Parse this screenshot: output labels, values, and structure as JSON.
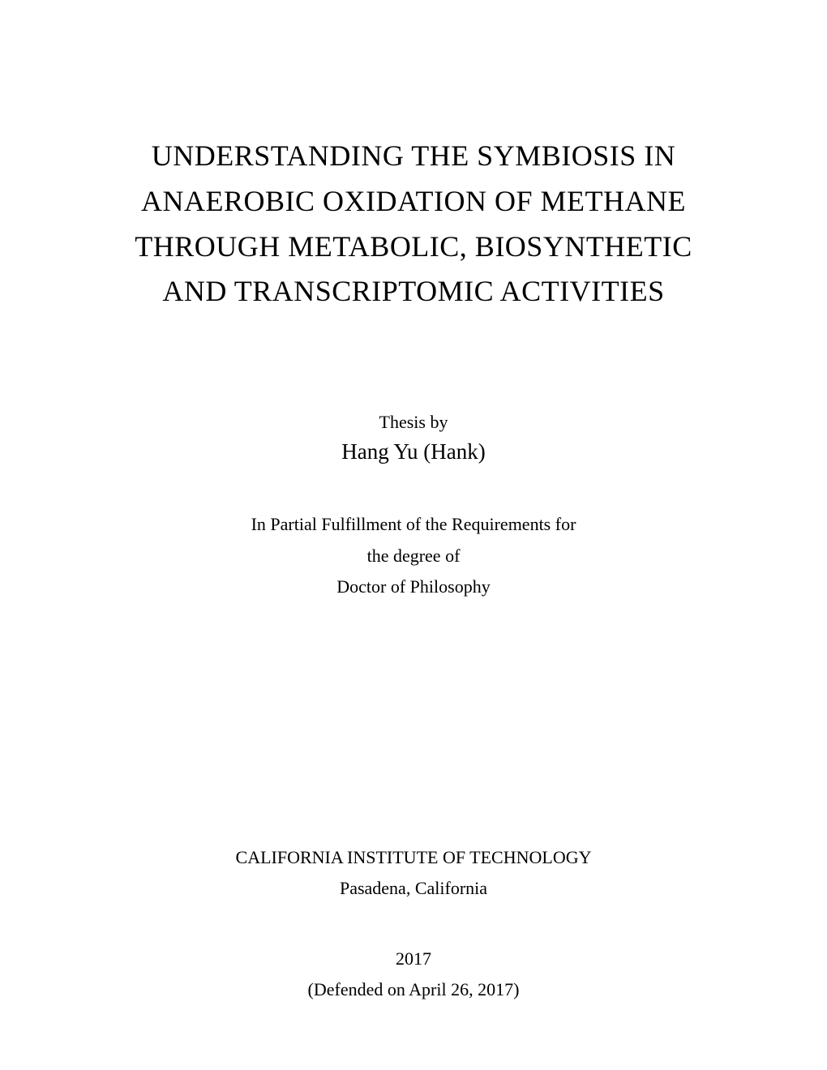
{
  "title": {
    "line1": "UNDERSTANDING THE SYMBIOSIS IN",
    "line2": "ANAEROBIC OXIDATION OF METHANE",
    "line3": "THROUGH METABOLIC, BIOSYNTHETIC",
    "line4": "AND TRANSCRIPTOMIC ACTIVITIES"
  },
  "thesis_by_label": "Thesis by",
  "author": "Hang Yu (Hank)",
  "fulfillment": {
    "line1": "In Partial Fulfillment of the Requirements for",
    "line2": "the degree of",
    "line3": "Doctor of Philosophy"
  },
  "institution": {
    "name": "CALIFORNIA INSTITUTE OF TECHNOLOGY",
    "location": "Pasadena, California"
  },
  "year": "2017",
  "defended": "(Defended on April 26, 2017)",
  "colors": {
    "background": "#ffffff",
    "text": "#000000"
  },
  "typography": {
    "title_fontsize": 36,
    "body_fontsize": 22,
    "author_fontsize": 27,
    "font_family": "serif"
  }
}
